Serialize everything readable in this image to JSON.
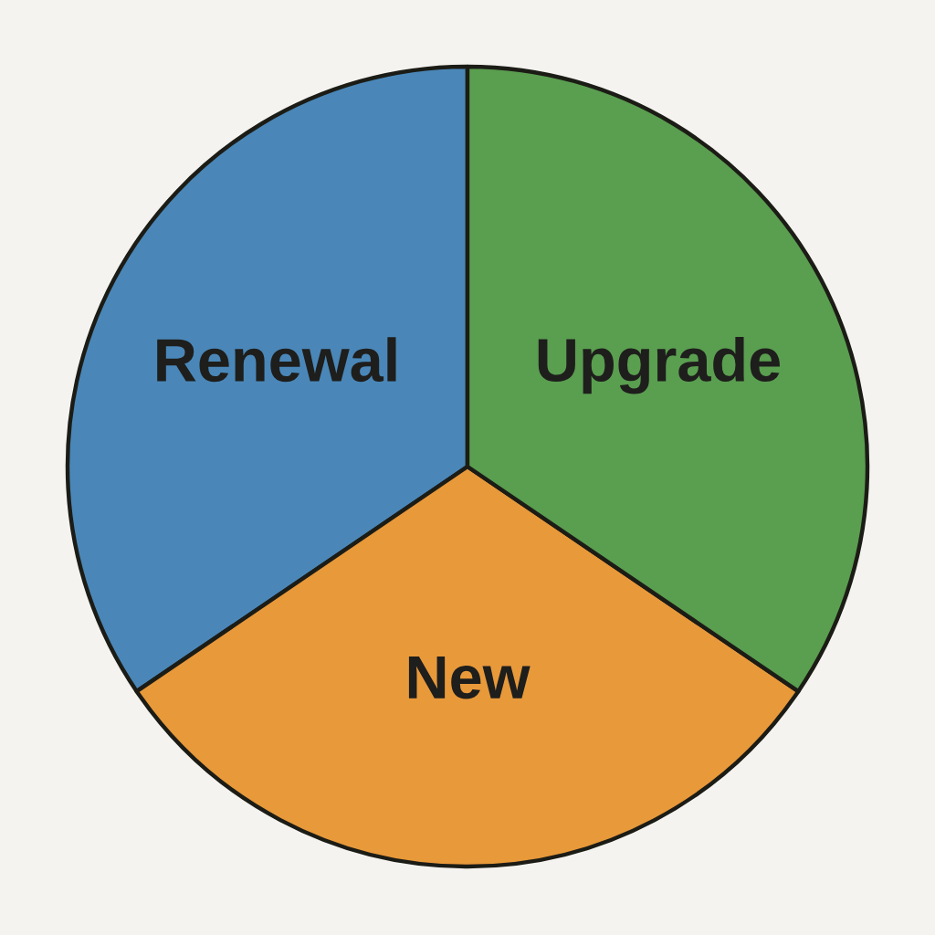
{
  "chart_data": {
    "type": "pie",
    "categories": [
      "Renewal",
      "New",
      "Upgrade"
    ],
    "values": [
      34.5,
      31,
      34.5
    ],
    "colors": [
      "#4a87b8",
      "#e8993a",
      "#5a9e50"
    ]
  }
}
